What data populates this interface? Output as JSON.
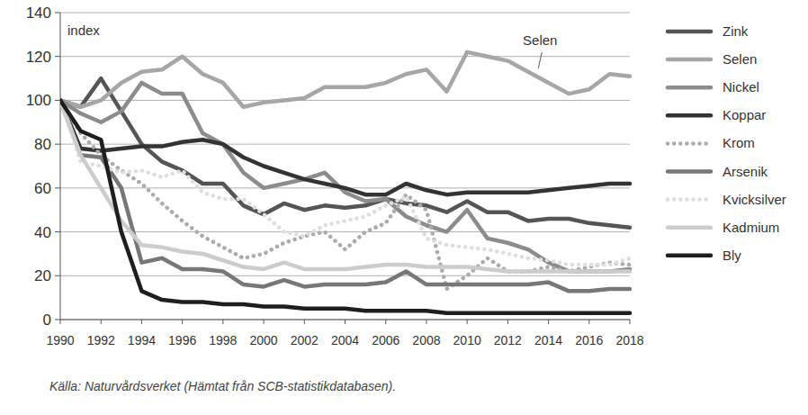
{
  "chart_data": {
    "type": "line",
    "y_label": "index",
    "annotations": [
      "Selen"
    ],
    "source": "Källa: Naturvårdsverket (Hämtat från SCB-statistikdatabasen).",
    "x": [
      1990,
      1991,
      1992,
      1993,
      1994,
      1995,
      1996,
      1997,
      1998,
      1999,
      2000,
      2001,
      2002,
      2003,
      2004,
      2005,
      2006,
      2007,
      2008,
      2009,
      2010,
      2011,
      2012,
      2013,
      2014,
      2015,
      2016,
      2017,
      2018
    ],
    "xlim": [
      1990,
      2018
    ],
    "xticks": [
      1990,
      1992,
      1994,
      1996,
      1998,
      2000,
      2002,
      2004,
      2006,
      2008,
      2010,
      2012,
      2014,
      2016,
      2018
    ],
    "ylim": [
      0,
      140
    ],
    "yticks": [
      0,
      20,
      40,
      60,
      80,
      100,
      120,
      140
    ],
    "grid": true,
    "legend": "right",
    "series": [
      {
        "name": "Zink",
        "color": "#555555",
        "line_style": "solid",
        "values": [
          100,
          97,
          110,
          95,
          80,
          72,
          68,
          62,
          62,
          52,
          48,
          53,
          50,
          52,
          51,
          52,
          55,
          53,
          52,
          49,
          54,
          49,
          49,
          45,
          46,
          46,
          44,
          43,
          42
        ]
      },
      {
        "name": "Selen",
        "color": "#a6a6a6",
        "line_style": "solid",
        "values": [
          100,
          97,
          100,
          108,
          113,
          114,
          120,
          112,
          108,
          97,
          99,
          100,
          101,
          106,
          106,
          106,
          108,
          112,
          114,
          104,
          122,
          120,
          118,
          113,
          108,
          103,
          105,
          112,
          111
        ]
      },
      {
        "name": "Nickel",
        "color": "#8c8c8c",
        "line_style": "solid",
        "values": [
          100,
          94,
          90,
          95,
          108,
          103,
          103,
          85,
          80,
          67,
          60,
          62,
          64,
          67,
          58,
          54,
          55,
          47,
          43,
          40,
          50,
          37,
          35,
          32,
          26,
          22,
          22,
          22,
          23
        ]
      },
      {
        "name": "Koppar",
        "color": "#333333",
        "line_style": "solid",
        "values": [
          100,
          78,
          77,
          78,
          79,
          79,
          81,
          82,
          80,
          74,
          70,
          67,
          64,
          62,
          60,
          57,
          57,
          62,
          59,
          57,
          58,
          58,
          58,
          58,
          59,
          60,
          61,
          62,
          62
        ]
      },
      {
        "name": "Krom",
        "color": "#ababab",
        "line_style": "dotted",
        "values": [
          100,
          85,
          75,
          68,
          62,
          53,
          45,
          38,
          33,
          28,
          30,
          35,
          38,
          40,
          32,
          40,
          44,
          57,
          50,
          14,
          20,
          28,
          22,
          22,
          24,
          22,
          24,
          26,
          25
        ]
      },
      {
        "name": "Arsenik",
        "color": "#777777",
        "line_style": "solid",
        "values": [
          100,
          75,
          74,
          60,
          26,
          28,
          23,
          23,
          22,
          16,
          15,
          18,
          15,
          16,
          16,
          16,
          17,
          22,
          16,
          16,
          16,
          16,
          16,
          16,
          17,
          13,
          13,
          14,
          14
        ]
      },
      {
        "name": "Kvicksilver",
        "color": "#dedede",
        "line_style": "dotted",
        "values": [
          100,
          72,
          70,
          67,
          68,
          65,
          68,
          58,
          55,
          55,
          48,
          40,
          38,
          43,
          45,
          47,
          52,
          56,
          37,
          34,
          33,
          32,
          30,
          28,
          27,
          25,
          25,
          25,
          28
        ]
      },
      {
        "name": "Kadmium",
        "color": "#cccccc",
        "line_style": "solid",
        "values": [
          100,
          75,
          60,
          45,
          34,
          33,
          31,
          30,
          27,
          24,
          23,
          26,
          23,
          23,
          23,
          24,
          25,
          25,
          24,
          24,
          24,
          23,
          22,
          22,
          22,
          22,
          22,
          22,
          22
        ]
      },
      {
        "name": "Bly",
        "color": "#1e1e1e",
        "line_style": "solid",
        "values": [
          100,
          86,
          82,
          40,
          13,
          9,
          8,
          8,
          7,
          7,
          6,
          6,
          5,
          5,
          5,
          4,
          4,
          4,
          4,
          3,
          3,
          3,
          3,
          3,
          3,
          3,
          3,
          3,
          3
        ]
      }
    ]
  }
}
